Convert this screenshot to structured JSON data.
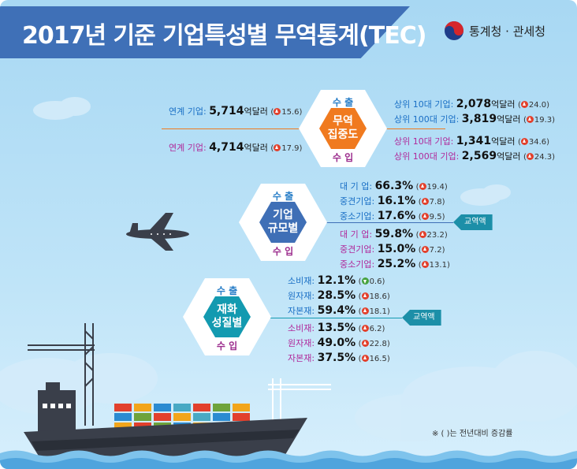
{
  "title": "2017년 기준 기업특성별 무역통계(TEC)",
  "logo": {
    "text": "통계청 · 관세청"
  },
  "concentration": {
    "name_line1": "무역",
    "name_line2": "집중도",
    "export_label": "수 출",
    "import_label": "수 입",
    "export_linked": {
      "label": "연계 기업:",
      "value": "5,714",
      "unit": "억달러",
      "change": "15.6",
      "direction": "up"
    },
    "import_linked": {
      "label": "연계 기업:",
      "value": "4,714",
      "unit": "억달러",
      "change": "17.9",
      "direction": "up"
    },
    "export_top": [
      {
        "label": "상위   10대 기업:",
        "value": "2,078",
        "unit": "억달러",
        "change": "24.0",
        "direction": "up"
      },
      {
        "label": "상위 100대 기업:",
        "value": "3,819",
        "unit": "억달러",
        "change": "19.3",
        "direction": "up"
      }
    ],
    "import_top": [
      {
        "label": "상위   10대 기업:",
        "value": "1,341",
        "unit": "억달러",
        "change": "34.6",
        "direction": "up"
      },
      {
        "label": "상위 100대 기업:",
        "value": "2,569",
        "unit": "억달러",
        "change": "24.3",
        "direction": "up"
      }
    ]
  },
  "company_size": {
    "name_line1": "기업",
    "name_line2": "규모별",
    "export_label": "수 출",
    "import_label": "수 입",
    "tag": "교역액",
    "export": [
      {
        "label": "대 기 업:",
        "value": "66.3%",
        "change": "19.4",
        "direction": "up"
      },
      {
        "label": "중견기업:",
        "value": "16.1%",
        "change": "7.8",
        "direction": "up"
      },
      {
        "label": "중소기업:",
        "value": "17.6%",
        "change": "9.5",
        "direction": "up"
      }
    ],
    "import": [
      {
        "label": "대 기 업:",
        "value": "59.8%",
        "change": "23.2",
        "direction": "up"
      },
      {
        "label": "중견기업:",
        "value": "15.0%",
        "change": "7.2",
        "direction": "up"
      },
      {
        "label": "중소기업:",
        "value": "25.2%",
        "change": "13.1",
        "direction": "up"
      }
    ]
  },
  "goods_type": {
    "name_line1": "재화",
    "name_line2": "성질별",
    "export_label": "수 출",
    "import_label": "수 입",
    "tag": "교역액",
    "export": [
      {
        "label": "소비재:",
        "value": "12.1%",
        "change": "0.6",
        "direction": "down"
      },
      {
        "label": "원자재:",
        "value": "28.5%",
        "change": "18.6",
        "direction": "up"
      },
      {
        "label": "자본재:",
        "value": "59.4%",
        "change": "18.1",
        "direction": "up"
      }
    ],
    "import": [
      {
        "label": "소비재:",
        "value": "13.5%",
        "change": "6.2",
        "direction": "up"
      },
      {
        "label": "원자재:",
        "value": "49.0%",
        "change": "22.8",
        "direction": "up"
      },
      {
        "label": "자본재:",
        "value": "37.5%",
        "change": "16.5",
        "direction": "up"
      }
    ]
  },
  "footnote": "※ (      )는 전년대비 증감률",
  "colors": {
    "banner": "#3f70b7",
    "hex_orange": "#f07a1f",
    "hex_blue": "#3f6fb6",
    "hex_teal": "#139ab0",
    "export_text": "#1a6fc5",
    "import_text": "#b02a9b"
  }
}
